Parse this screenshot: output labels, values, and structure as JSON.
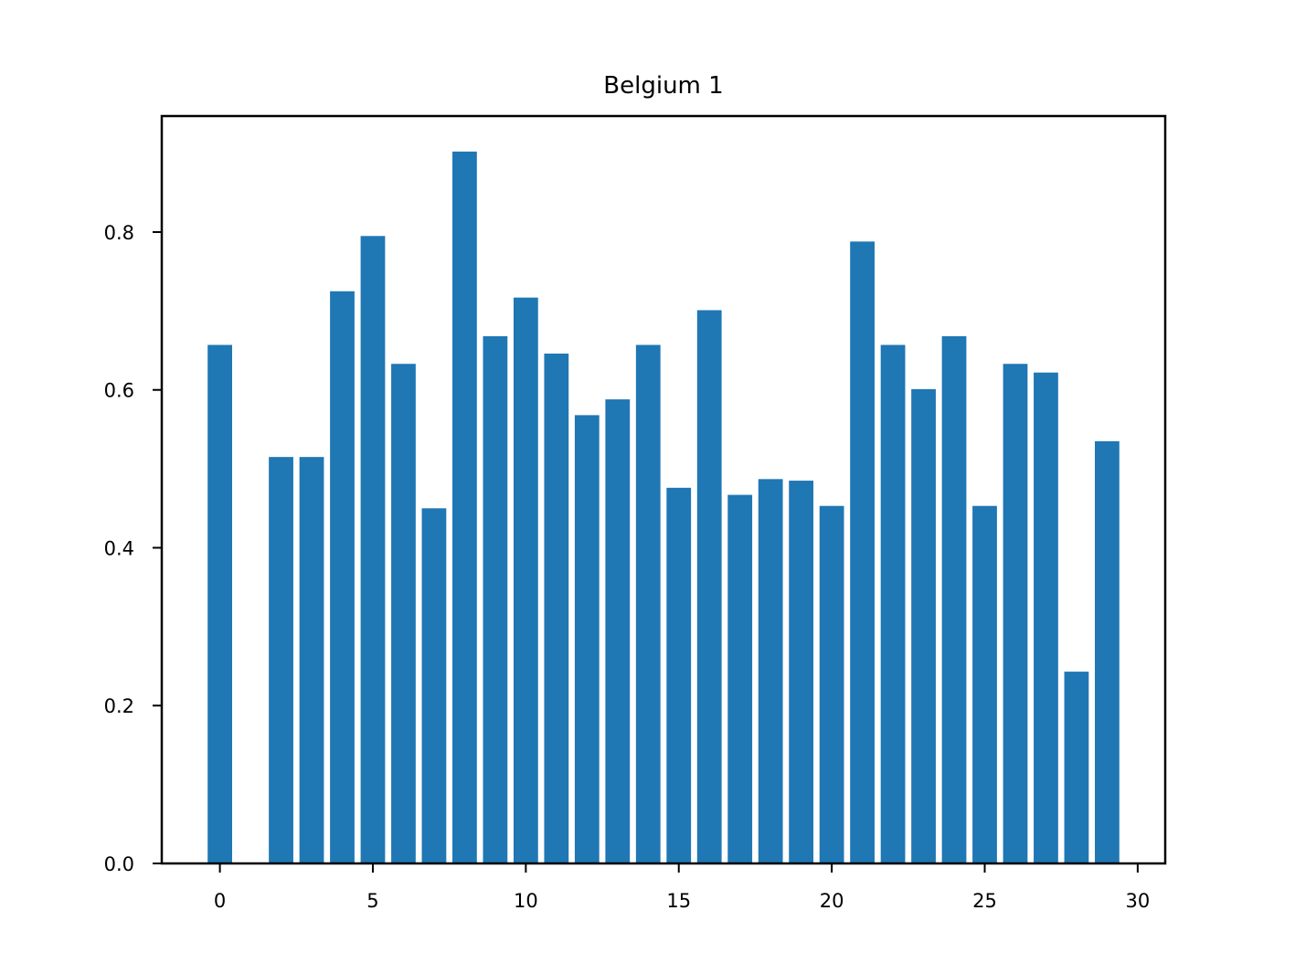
{
  "chart_data": {
    "type": "bar",
    "title": "Belgium 1",
    "xlabel": "",
    "ylabel": "",
    "x": [
      0,
      1,
      2,
      3,
      4,
      5,
      6,
      7,
      8,
      9,
      10,
      11,
      12,
      13,
      14,
      15,
      16,
      17,
      18,
      19,
      20,
      21,
      22,
      23,
      24,
      25,
      26,
      27,
      28,
      29
    ],
    "values": [
      0.657,
      0.0,
      0.515,
      0.515,
      0.725,
      0.795,
      0.633,
      0.45,
      0.902,
      0.668,
      0.717,
      0.646,
      0.568,
      0.588,
      0.657,
      0.476,
      0.701,
      0.467,
      0.487,
      0.485,
      0.453,
      0.788,
      0.657,
      0.601,
      0.668,
      0.453,
      0.633,
      0.622,
      0.243,
      0.535
    ],
    "xlim": [
      -1.9,
      30.9
    ],
    "ylim": [
      0,
      0.947
    ],
    "xticks": [
      0,
      5,
      10,
      15,
      20,
      25,
      30
    ],
    "xtick_labels": [
      "0",
      "5",
      "10",
      "15",
      "20",
      "25",
      "30"
    ],
    "yticks": [
      0.0,
      0.2,
      0.4,
      0.6,
      0.8
    ],
    "ytick_labels": [
      "0.0",
      "0.2",
      "0.4",
      "0.6",
      "0.8"
    ],
    "bar_width": 0.8,
    "bar_color": "#1f77b4",
    "grid": false,
    "legend": "none"
  }
}
